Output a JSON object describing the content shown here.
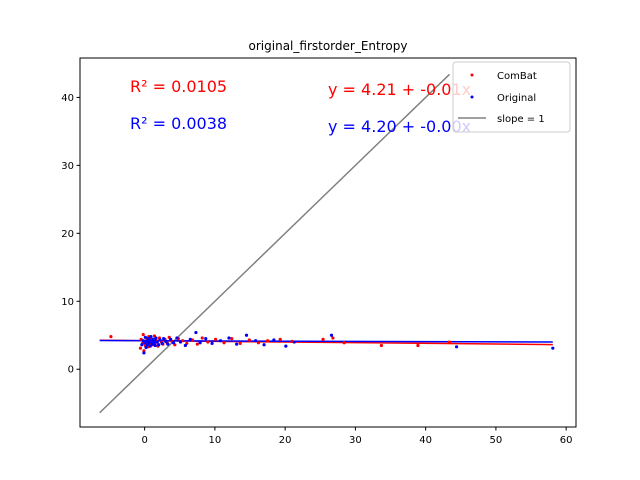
{
  "chart_data": {
    "type": "scatter",
    "title": "original_firstorder_Entropy",
    "xlabel": "",
    "ylabel": "",
    "xlim": [
      -9.2,
      61.4
    ],
    "ylim": [
      -8.5,
      45.8
    ],
    "xticks": [
      0,
      10,
      20,
      30,
      40,
      50,
      60
    ],
    "yticks": [
      0,
      10,
      20,
      30,
      40
    ],
    "grid": false,
    "legend_position": "top-right",
    "annotations": {
      "r2_combat": "R² = 0.0105",
      "r2_original": "R² = 0.0038",
      "eq_combat": "y = 4.21 + -0.01x",
      "eq_original": "y = 4.20 + -0.00x"
    },
    "series": [
      {
        "name": "ComBat",
        "color": "#ff0000",
        "points": [
          [
            -4.8,
            4.8
          ],
          [
            -0.6,
            3.1
          ],
          [
            -0.5,
            4.4
          ],
          [
            -0.3,
            3.8
          ],
          [
            -0.2,
            5.1
          ],
          [
            -0.1,
            2.7
          ],
          [
            0.0,
            4.0
          ],
          [
            0.1,
            3.5
          ],
          [
            0.2,
            4.6
          ],
          [
            0.3,
            3.9
          ],
          [
            0.4,
            4.2
          ],
          [
            0.5,
            3.3
          ],
          [
            0.6,
            4.8
          ],
          [
            0.7,
            4.1
          ],
          [
            0.8,
            3.7
          ],
          [
            0.9,
            4.5
          ],
          [
            1.0,
            4.0
          ],
          [
            1.1,
            3.6
          ],
          [
            1.2,
            4.3
          ],
          [
            1.4,
            4.9
          ],
          [
            1.5,
            3.8
          ],
          [
            1.7,
            4.2
          ],
          [
            1.9,
            3.4
          ],
          [
            2.1,
            4.6
          ],
          [
            2.4,
            4.0
          ],
          [
            2.6,
            3.7
          ],
          [
            2.9,
            4.4
          ],
          [
            3.2,
            3.9
          ],
          [
            3.5,
            4.7
          ],
          [
            3.9,
            4.1
          ],
          [
            4.3,
            3.6
          ],
          [
            4.8,
            4.5
          ],
          [
            5.4,
            4.2
          ],
          [
            6.0,
            3.8
          ],
          [
            6.8,
            4.3
          ],
          [
            7.5,
            3.7
          ],
          [
            8.2,
            4.6
          ],
          [
            9.0,
            4.0
          ],
          [
            10.1,
            4.4
          ],
          [
            11.3,
            3.9
          ],
          [
            12.4,
            4.5
          ],
          [
            13.6,
            3.8
          ],
          [
            14.9,
            4.3
          ],
          [
            16.2,
            3.9
          ],
          [
            17.5,
            4.2
          ],
          [
            19.3,
            4.4
          ],
          [
            21.0,
            4.1
          ],
          [
            25.4,
            4.4
          ],
          [
            26.8,
            4.6
          ],
          [
            28.4,
            3.9
          ],
          [
            33.7,
            3.5
          ],
          [
            38.9,
            3.5
          ],
          [
            43.4,
            4.0
          ]
        ]
      },
      {
        "name": "Original",
        "color": "#0000ff",
        "points": [
          [
            -0.4,
            3.6
          ],
          [
            -0.2,
            4.2
          ],
          [
            -0.1,
            2.4
          ],
          [
            0.0,
            3.9
          ],
          [
            0.1,
            4.7
          ],
          [
            0.2,
            3.2
          ],
          [
            0.3,
            4.1
          ],
          [
            0.4,
            3.6
          ],
          [
            0.5,
            4.5
          ],
          [
            0.6,
            3.9
          ],
          [
            0.7,
            4.3
          ],
          [
            0.8,
            3.4
          ],
          [
            0.9,
            4.8
          ],
          [
            1.0,
            4.0
          ],
          [
            1.1,
            3.7
          ],
          [
            1.2,
            4.4
          ],
          [
            1.3,
            3.9
          ],
          [
            1.4,
            4.2
          ],
          [
            1.5,
            3.5
          ],
          [
            1.6,
            4.6
          ],
          [
            1.8,
            4.0
          ],
          [
            2.0,
            3.6
          ],
          [
            2.2,
            4.3
          ],
          [
            2.5,
            3.8
          ],
          [
            2.7,
            4.5
          ],
          [
            3.0,
            4.1
          ],
          [
            3.3,
            3.7
          ],
          [
            3.7,
            4.4
          ],
          [
            4.1,
            3.9
          ],
          [
            4.6,
            4.6
          ],
          [
            5.1,
            4.0
          ],
          [
            5.8,
            3.5
          ],
          [
            6.5,
            4.4
          ],
          [
            7.3,
            5.4
          ],
          [
            7.9,
            3.9
          ],
          [
            8.7,
            4.5
          ],
          [
            9.6,
            3.8
          ],
          [
            10.8,
            4.2
          ],
          [
            12.0,
            4.6
          ],
          [
            13.1,
            3.7
          ],
          [
            14.5,
            5.0
          ],
          [
            15.8,
            4.2
          ],
          [
            17.0,
            3.6
          ],
          [
            18.4,
            4.3
          ],
          [
            20.1,
            3.4
          ],
          [
            21.3,
            4.0
          ],
          [
            26.6,
            5.0
          ],
          [
            44.4,
            3.3
          ],
          [
            58.1,
            3.1
          ]
        ]
      }
    ],
    "lines": [
      {
        "name": "slope = 1",
        "color": "#808080",
        "x": [
          -6.4,
          43.4
        ],
        "y": [
          -6.4,
          43.4
        ]
      },
      {
        "name": "",
        "color": "#ff0000",
        "x": [
          -6.4,
          58.1
        ],
        "y": [
          4.27,
          3.63
        ]
      },
      {
        "name": "",
        "color": "#0000ff",
        "x": [
          -6.4,
          58.1
        ],
        "y": [
          4.22,
          4.0
        ]
      }
    ]
  }
}
